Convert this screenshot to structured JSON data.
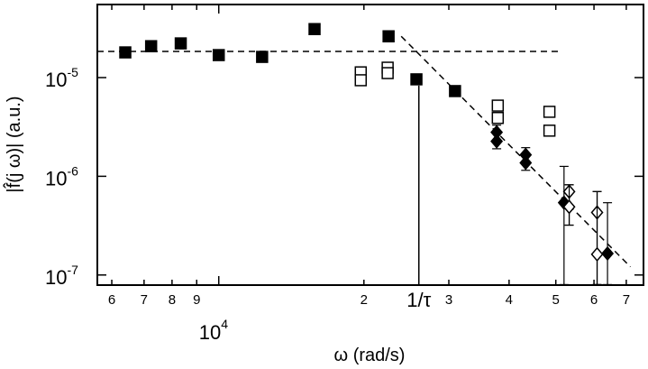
{
  "chart_data": {
    "type": "scatter",
    "log_x": true,
    "log_y": true,
    "x_label": "ω (rad/s)",
    "y_label": "|f̂(j ω)| (a.u.)",
    "xlim": [
      5600,
      76000
    ],
    "ylim": [
      7.9e-08,
      5.5e-05
    ],
    "xticks": [
      {
        "value": 6000,
        "label": "6"
      },
      {
        "value": 7000,
        "label": "7"
      },
      {
        "value": 8000,
        "label": "8"
      },
      {
        "value": 9000,
        "label": "9"
      },
      {
        "value": 10000,
        "label": "10",
        "exponent": "4"
      },
      {
        "value": 20000,
        "label": "2"
      },
      {
        "value": 30000,
        "label": "3"
      },
      {
        "value": 40000,
        "label": "4"
      },
      {
        "value": 50000,
        "label": "5"
      },
      {
        "value": 60000,
        "label": "6"
      },
      {
        "value": 70000,
        "label": "7"
      }
    ],
    "yticks": [
      {
        "value": 1e-05,
        "label": "10",
        "exponent": "-5"
      },
      {
        "value": 1e-06,
        "label": "10",
        "exponent": "-6"
      },
      {
        "value": 1e-07,
        "label": "10",
        "exponent": "-7"
      }
    ],
    "series": [
      {
        "marker": "square",
        "filled": true,
        "color": "#000000",
        "x": [
          6400,
          7240,
          8340,
          10000,
          12300,
          15800,
          22500,
          25700,
          30900
        ],
        "values": [
          1.8e-05,
          2.08e-05,
          2.22e-05,
          1.69e-05,
          1.62e-05,
          3.1e-05,
          2.62e-05,
          9.6e-06,
          7.3e-06
        ]
      },
      {
        "marker": "square",
        "filled": false,
        "color": "#000000",
        "x": [
          19700,
          19700,
          22400,
          22400,
          37900,
          37900,
          48500,
          48500
        ],
        "values": [
          1.13e-05,
          9.4e-06,
          1.26e-05,
          1.11e-05,
          5.2e-06,
          3.9e-06,
          4.5e-06,
          2.9e-06
        ]
      },
      {
        "marker": "diamond",
        "filled": true,
        "color": "#000000",
        "x": [
          37700,
          37700,
          43300,
          43300,
          52000,
          64000
        ],
        "values": [
          2.79e-06,
          2.26e-06,
          1.65e-06,
          1.37e-06,
          5.4e-07,
          1.65e-07
        ],
        "lower": [
          2.3e-06,
          1.9e-06,
          1.4e-06,
          1.15e-06,
          8e-08,
          8e-08
        ],
        "upper": [
          3.3e-06,
          2.7e-06,
          1.95e-06,
          1.6e-06,
          1.26e-06,
          5.4e-07
        ]
      },
      {
        "marker": "diamond",
        "filled": false,
        "color": "#000000",
        "x": [
          53300,
          53300,
          60900,
          60900
        ],
        "values": [
          7e-07,
          4.9e-07,
          4.3e-07,
          1.62e-07
        ],
        "lower": [
          3.2e-07,
          3.2e-07,
          8e-08,
          8e-08
        ],
        "upper": [
          8.2e-07,
          8.2e-07,
          7e-07,
          7e-07
        ]
      }
    ],
    "lines": [
      {
        "dash": true,
        "x": [
          5600,
          50700
        ],
        "values": [
          1.84e-05,
          1.84e-05
        ]
      },
      {
        "dash": true,
        "x": [
          23900,
          71400
        ],
        "values": [
          2.62e-05,
          1.21e-07
        ]
      }
    ],
    "vline": {
      "x": 26000,
      "top": 8.3e-06,
      "label": "1/τ"
    }
  }
}
